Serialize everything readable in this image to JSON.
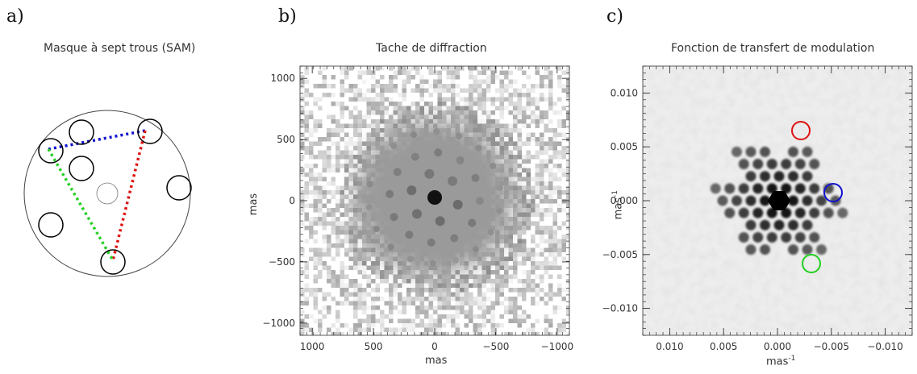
{
  "panel_a": {
    "letter": "a)",
    "title": "Masque à sept trous (SAM)",
    "hole_count": 7,
    "baseline_colors": {
      "blue": "#1010d0",
      "red": "#e01010",
      "green": "#20d020"
    }
  },
  "panel_b": {
    "letter": "b)",
    "title": "Tache de diffraction",
    "xlabel": "mas",
    "ylabel": "mas"
  },
  "panel_c": {
    "letter": "c)",
    "title": "Fonction de transfert de modulation",
    "xlabel": "mas",
    "xlabel_sup": "-1",
    "ylabel": "mas",
    "ylabel_sup": "-1"
  },
  "chart_data": [
    {
      "type": "heatmap",
      "title": "Tache de diffraction",
      "xlabel": "mas",
      "ylabel": "mas",
      "xlim": [
        1100,
        -1100
      ],
      "ylim": [
        -1100,
        1100
      ],
      "x_ticks": [
        1000,
        500,
        0,
        -500,
        -1000
      ],
      "x_tick_labels": [
        "1000",
        "500",
        "0",
        "−500",
        "−1000"
      ],
      "y_ticks": [
        1000,
        500,
        0,
        -500,
        -1000
      ],
      "y_tick_labels": [
        "1000",
        "500",
        "0",
        "−500",
        "−1000"
      ],
      "colormap": "grey-reversed"
    },
    {
      "type": "heatmap",
      "title": "Fonction de transfert de modulation",
      "xlabel": "mas-1",
      "ylabel": "mas-1",
      "xlim": [
        0.0125,
        -0.0125
      ],
      "ylim": [
        -0.0125,
        0.0125
      ],
      "x_ticks": [
        -0.01,
        -0.005,
        0.0,
        0.005,
        0.01
      ],
      "x_tick_labels": [
        "−0.010",
        "−0.005",
        "0.000",
        "0.005",
        "0.010"
      ],
      "y_ticks": [
        0.01,
        0.005,
        0.0,
        -0.005,
        -0.01
      ],
      "y_tick_labels": [
        "0.010",
        "0.005",
        "0.000",
        "−0.005",
        "−0.010"
      ],
      "colormap": "grey-reversed",
      "highlight_colors": [
        "#e01010",
        "#1010d0",
        "#20d020"
      ]
    }
  ]
}
